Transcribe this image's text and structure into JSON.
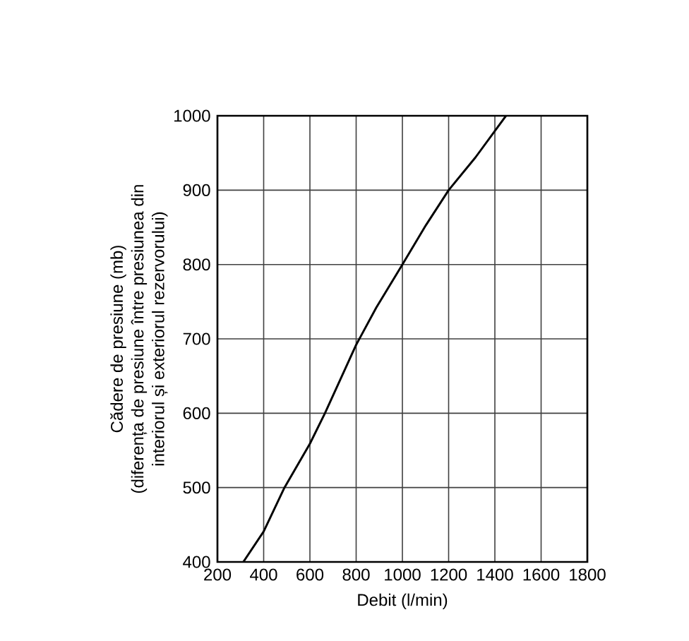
{
  "chart_data": {
    "type": "line",
    "xlabel": "Debit (l/min)",
    "ylabel": "Cădere de presiune (mb)\n(diferența de presiune între presiunea din\ninteriorul și exteriorul rezervorului)",
    "x": [
      312,
      400,
      490,
      600,
      665,
      800,
      887,
      1000,
      1102,
      1200,
      1316,
      1448
    ],
    "series": [
      {
        "color": "#000000",
        "values": [
          400,
          441,
          500,
          559,
          600,
          692,
          742,
          800,
          853,
          900,
          944,
          1000
        ]
      }
    ],
    "xlim": [
      200,
      1800
    ],
    "ylim": [
      400,
      1000
    ],
    "xticks": [
      200,
      400,
      600,
      800,
      1000,
      1200,
      1400,
      1600,
      1800
    ],
    "yticks": [
      400,
      500,
      600,
      700,
      800,
      900,
      1000
    ],
    "grid": true,
    "marker": "none",
    "line_style": "solid"
  }
}
